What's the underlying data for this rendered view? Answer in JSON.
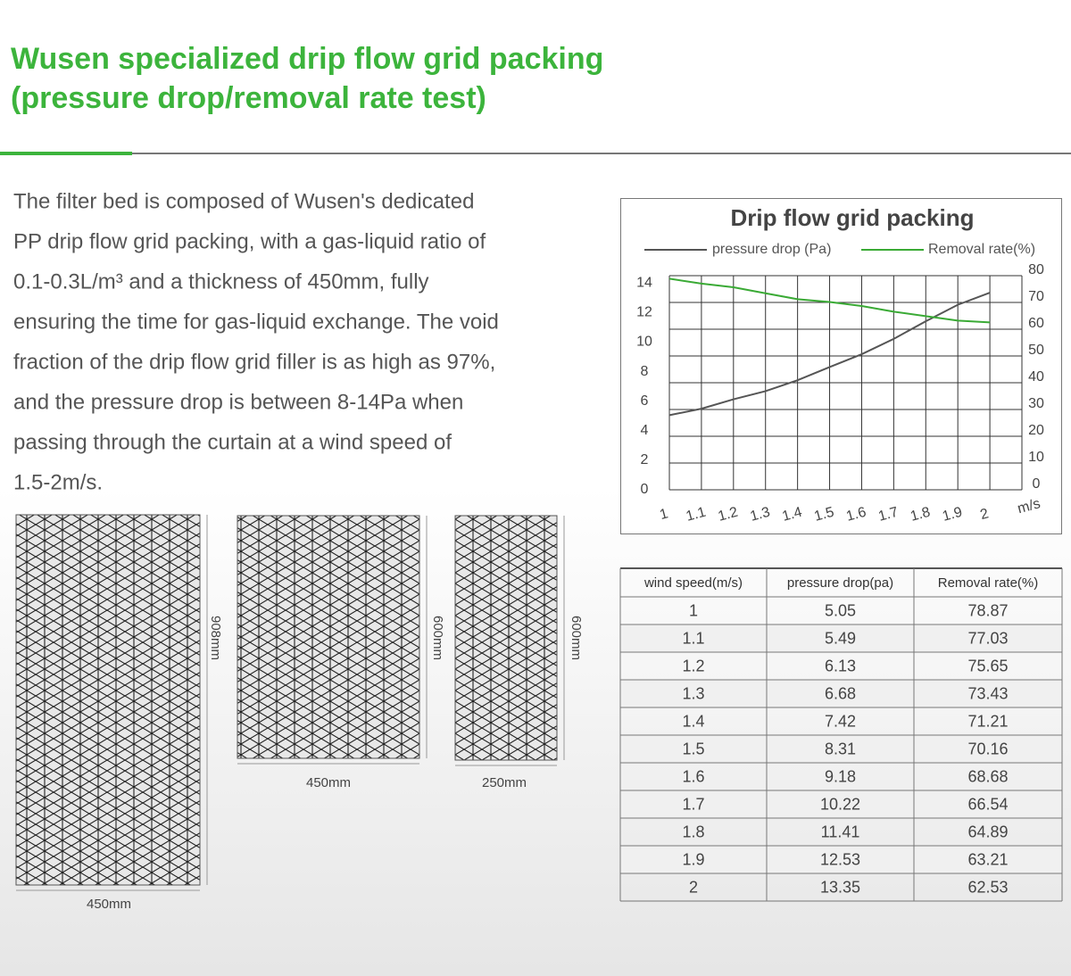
{
  "header": {
    "title_lines": [
      "Wusen specialized drip flow grid packing",
      "(pressure drop/removal rate test)"
    ]
  },
  "body": {
    "lines": [
      "The filter bed is composed of Wusen's dedicated",
      "PP drip flow grid packing, with a gas-liquid ratio of",
      "0.1-0.3L/m³ and a thickness of 450mm, fully",
      "ensuring the time for gas-liquid exchange. The void",
      "fraction of the drip flow grid filler is as high as 97%,",
      "and the pressure drop is between 8-14Pa when",
      "passing through the curtain at a wind speed of",
      "1.5-2m/s."
    ]
  },
  "images": [
    {
      "height": "908mm",
      "width": "450mm"
    },
    {
      "height": "600mm",
      "width": "450mm"
    },
    {
      "height": "600mm",
      "width": "250mm"
    }
  ],
  "chart_data": {
    "type": "line",
    "title": "Drip flow grid packing",
    "x_label": "m/s",
    "x": [
      1,
      1.1,
      1.2,
      1.3,
      1.4,
      1.5,
      1.6,
      1.7,
      1.8,
      1.9,
      2
    ],
    "xticks": [
      1,
      1.1,
      1.2,
      1.3,
      1.4,
      1.5,
      1.6,
      1.7,
      1.8,
      1.9,
      2
    ],
    "xlim": [
      1,
      2.1
    ],
    "ylim": [
      0,
      14.5
    ],
    "yticks": [
      0,
      2,
      4,
      6,
      8,
      10,
      12,
      14
    ],
    "y2lim": [
      0,
      80
    ],
    "y2ticks": [
      0,
      10,
      20,
      30,
      40,
      50,
      60,
      70,
      80
    ],
    "grid": true,
    "series": [
      {
        "name": "pressure drop (Pa)",
        "color": "#555555",
        "values": [
          5.05,
          5.49,
          6.13,
          6.68,
          7.42,
          8.31,
          9.18,
          10.22,
          11.41,
          12.53,
          13.35
        ]
      },
      {
        "name": "Removal rate(%)",
        "color": "#3aaa35",
        "axis": "y2",
        "values": [
          78.87,
          77.03,
          75.65,
          73.43,
          71.21,
          70.16,
          68.68,
          66.54,
          64.89,
          63.21,
          62.53
        ]
      }
    ]
  },
  "table": {
    "header": [
      "wind speed(m/s)",
      "pressure drop(pa)",
      "Removal rate(%)"
    ],
    "rows": [
      [
        "1",
        "5.05",
        "78.87"
      ],
      [
        "1.1",
        "5.49",
        "77.03"
      ],
      [
        "1.2",
        "6.13",
        "75.65"
      ],
      [
        "1.3",
        "6.68",
        "73.43"
      ],
      [
        "1.4",
        "7.42",
        "71.21"
      ],
      [
        "1.5",
        "8.31",
        "70.16"
      ],
      [
        "1.6",
        "9.18",
        "68.68"
      ],
      [
        "1.7",
        "10.22",
        "66.54"
      ],
      [
        "1.8",
        "11.41",
        "64.89"
      ],
      [
        "1.9",
        "12.53",
        "63.21"
      ],
      [
        "2",
        "13.35",
        "62.53"
      ]
    ]
  }
}
